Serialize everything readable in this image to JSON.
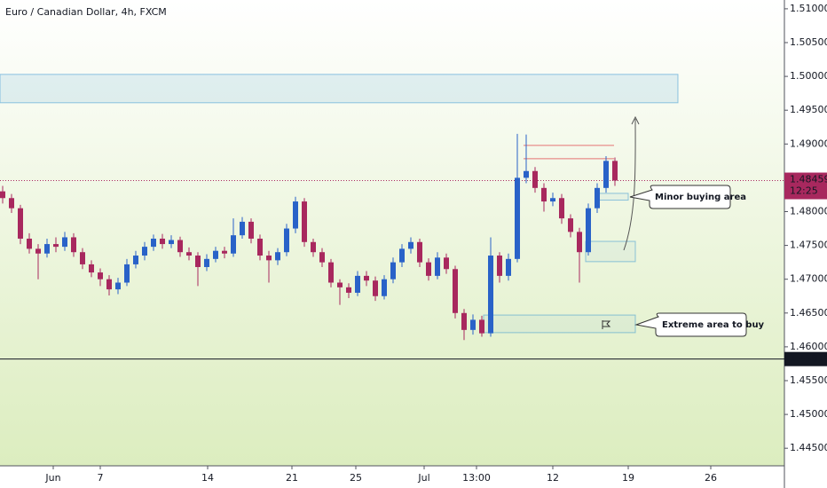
{
  "chart_data": {
    "type": "candlestick",
    "title": "Euro / Canadian Dollar, 4h, FXCM",
    "up_color": "#2962c8",
    "down_color": "#a8285e",
    "open": [
      1.483,
      1.482,
      1.4805,
      1.476,
      1.4745,
      1.4738,
      1.4752,
      1.4748,
      1.4762,
      1.474,
      1.4722,
      1.471,
      1.47,
      1.4685,
      1.4695,
      1.4722,
      1.4735,
      1.4748,
      1.476,
      1.4752,
      1.4758,
      1.474,
      1.4735,
      1.4718,
      1.473,
      1.4742,
      1.4738,
      1.4765,
      1.4785,
      1.476,
      1.4735,
      1.4728,
      1.474,
      1.4775,
      1.4815,
      1.4755,
      1.474,
      1.4725,
      1.4695,
      1.4688,
      1.468,
      1.4705,
      1.4698,
      1.4675,
      1.47,
      1.4725,
      1.4745,
      1.4755,
      1.4725,
      1.4705,
      1.4732,
      1.4715,
      1.465,
      1.4625,
      1.464,
      1.462,
      1.4735,
      1.4705,
      1.473,
      1.485,
      1.486,
      1.4835,
      1.4815,
      1.482,
      1.479,
      1.477,
      1.474,
      1.4805,
      1.4835,
      1.4875
    ],
    "high": [
      1.4838,
      1.4826,
      1.481,
      1.4768,
      1.4752,
      1.476,
      1.4762,
      1.477,
      1.4768,
      1.4746,
      1.4728,
      1.4716,
      1.4706,
      1.4702,
      1.473,
      1.4742,
      1.4755,
      1.4766,
      1.4767,
      1.4765,
      1.4763,
      1.4747,
      1.474,
      1.4737,
      1.4748,
      1.4748,
      1.479,
      1.4792,
      1.479,
      1.4766,
      1.4742,
      1.4746,
      1.4782,
      1.4822,
      1.482,
      1.476,
      1.4746,
      1.473,
      1.47,
      1.4694,
      1.4712,
      1.4712,
      1.4704,
      1.4706,
      1.4732,
      1.4752,
      1.4762,
      1.476,
      1.4731,
      1.474,
      1.4738,
      1.472,
      1.4656,
      1.4648,
      1.4646,
      1.4762,
      1.474,
      1.4738,
      1.4915,
      1.4914,
      1.4866,
      1.4842,
      1.4828,
      1.4826,
      1.4796,
      1.4776,
      1.4812,
      1.4842,
      1.4882,
      1.488
    ],
    "low": [
      1.4812,
      1.4798,
      1.4752,
      1.4738,
      1.47,
      1.4732,
      1.474,
      1.4742,
      1.4733,
      1.4715,
      1.4703,
      1.469,
      1.4676,
      1.4678,
      1.469,
      1.4716,
      1.4728,
      1.4742,
      1.4745,
      1.4746,
      1.4733,
      1.4728,
      1.469,
      1.4712,
      1.4725,
      1.4731,
      1.4733,
      1.476,
      1.4753,
      1.4728,
      1.4695,
      1.4721,
      1.4734,
      1.4768,
      1.4748,
      1.4733,
      1.4718,
      1.4688,
      1.4662,
      1.4672,
      1.4675,
      1.469,
      1.4668,
      1.467,
      1.4694,
      1.4718,
      1.4738,
      1.4718,
      1.4698,
      1.47,
      1.4708,
      1.4642,
      1.461,
      1.4618,
      1.4615,
      1.4615,
      1.4695,
      1.4698,
      1.4725,
      1.4842,
      1.4828,
      1.48,
      1.4808,
      1.4782,
      1.4762,
      1.4695,
      1.4735,
      1.4798,
      1.4828,
      1.4838
    ],
    "close": [
      1.482,
      1.4805,
      1.476,
      1.4745,
      1.4738,
      1.4752,
      1.4748,
      1.4762,
      1.474,
      1.4722,
      1.471,
      1.47,
      1.4685,
      1.4695,
      1.4722,
      1.4735,
      1.4748,
      1.476,
      1.4752,
      1.4758,
      1.474,
      1.4735,
      1.4718,
      1.473,
      1.4742,
      1.4738,
      1.4765,
      1.4785,
      1.476,
      1.4735,
      1.4728,
      1.474,
      1.4775,
      1.4815,
      1.4755,
      1.474,
      1.4725,
      1.4695,
      1.4688,
      1.468,
      1.4705,
      1.4698,
      1.4675,
      1.47,
      1.4725,
      1.4745,
      1.4755,
      1.4725,
      1.4705,
      1.4732,
      1.4715,
      1.465,
      1.4625,
      1.464,
      1.462,
      1.4735,
      1.4705,
      1.473,
      1.485,
      1.486,
      1.4835,
      1.4815,
      1.482,
      1.479,
      1.477,
      1.474,
      1.4805,
      1.4835,
      1.4875,
      1.4846
    ],
    "xlim": [
      -0.3,
      88.1
    ],
    "xticks": [
      {
        "value": 5.7,
        "label": "Jun"
      },
      {
        "value": 11,
        "label": "7"
      },
      {
        "value": 23.1,
        "label": "14"
      },
      {
        "value": 32.6,
        "label": "21"
      },
      {
        "value": 39.8,
        "label": "25"
      },
      {
        "value": 47.5,
        "label": "Jul"
      },
      {
        "value": 53.4,
        "label": "13:00"
      },
      {
        "value": 62,
        "label": "12"
      },
      {
        "value": 70.5,
        "label": "19"
      },
      {
        "value": 79.8,
        "label": "26"
      }
    ],
    "ylim": [
      1.4424,
      1.5113
    ],
    "yticks": [
      {
        "value": 1.445,
        "label": "1.44500"
      },
      {
        "value": 1.45,
        "label": "1.45000"
      },
      {
        "value": 1.455,
        "label": "1.45500"
      },
      {
        "value": 1.46,
        "label": "1.46000"
      },
      {
        "value": 1.465,
        "label": "1.46500"
      },
      {
        "value": 1.47,
        "label": "1.47000"
      },
      {
        "value": 1.475,
        "label": "1.47500"
      },
      {
        "value": 1.48,
        "label": "1.48000"
      },
      {
        "value": 1.485,
        "label": "1.48500"
      },
      {
        "value": 1.49,
        "label": "1.49000"
      },
      {
        "value": 1.495,
        "label": "1.49500"
      },
      {
        "value": 1.5,
        "label": "1.50000"
      },
      {
        "value": 1.505,
        "label": "1.50500"
      },
      {
        "value": 1.51,
        "label": "1.51000"
      }
    ],
    "last_price": 1.48459,
    "countdown": "12:25",
    "last_price_color": "#a8285e",
    "marked_price": 1.45819,
    "zones": [
      {
        "ylim": [
          1.4961,
          1.5003
        ],
        "xlim": [
          -0.3,
          76.1
        ],
        "color": "#2a8fd0"
      },
      {
        "ylim": [
          1.4817,
          1.4827
        ],
        "xlim": [
          66.9,
          70.5
        ],
        "color": "#2a8fd0"
      },
      {
        "ylim": [
          1.4726,
          1.4756
        ],
        "xlim": [
          65.7,
          71.3
        ],
        "color": "#2a8fd0"
      },
      {
        "ylim": [
          1.4621,
          1.4647
        ],
        "xlim": [
          54.2,
          71.3
        ],
        "color": "#2a8fd0"
      }
    ],
    "levels": [
      {
        "value": 1.48979,
        "xlim": [
          58.7,
          68.9
        ],
        "color": "#e57373"
      },
      {
        "value": 1.48782,
        "xlim": [
          58.7,
          68.9
        ],
        "color": "#e57373"
      }
    ],
    "callouts": [
      "Minor buying area",
      "Extreme area to buy"
    ]
  }
}
